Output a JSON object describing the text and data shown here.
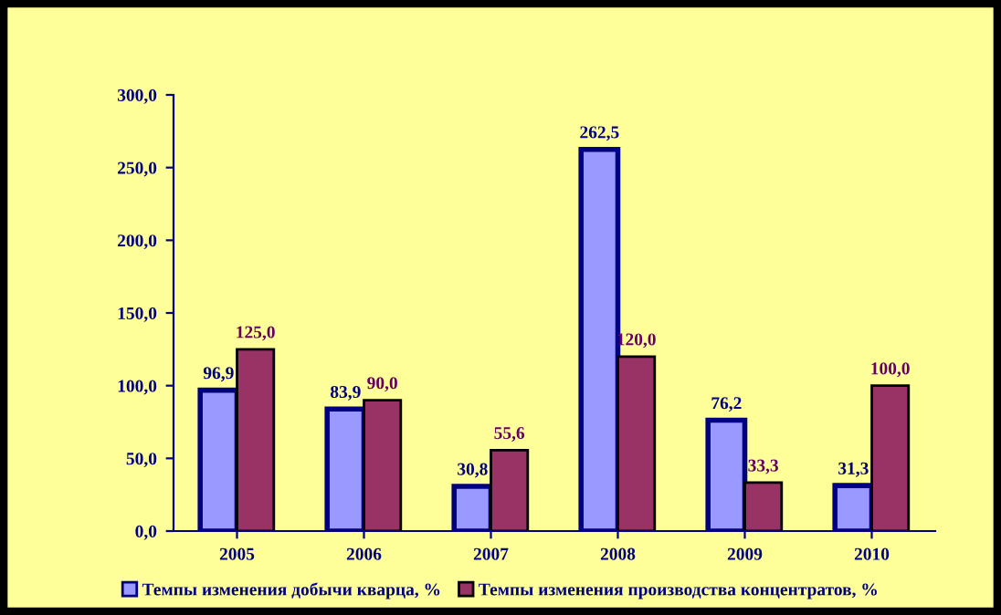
{
  "chart_data": {
    "type": "bar",
    "categories": [
      "2005",
      "2006",
      "2007",
      "2008",
      "2009",
      "2010"
    ],
    "series": [
      {
        "name": "Темпы изменения добычи кварца, %",
        "color": "#9999ff",
        "values": [
          96.9,
          83.9,
          30.8,
          262.5,
          76.2,
          31.3
        ],
        "value_labels": [
          "96,9",
          "83,9",
          "30,8",
          "262,5",
          "76,2",
          "31,3"
        ]
      },
      {
        "name": "Темпы изменения производства концентратов, %",
        "color": "#993366",
        "values": [
          125.0,
          90.0,
          55.6,
          120.0,
          33.3,
          100.0
        ],
        "value_labels": [
          "125,0",
          "90,0",
          "55,6",
          "120,0",
          "33,3",
          "100,0"
        ]
      }
    ],
    "ylim": [
      0,
      300
    ],
    "yticks": [
      {
        "value": 0,
        "label": "0,0"
      },
      {
        "value": 50,
        "label": "50,0"
      },
      {
        "value": 100,
        "label": "100,0"
      },
      {
        "value": 150,
        "label": "150,0"
      },
      {
        "value": 200,
        "label": "200,0"
      },
      {
        "value": 250,
        "label": "250,0"
      },
      {
        "value": 300,
        "label": "300,0"
      }
    ],
    "grid": false,
    "legend": "bottom"
  }
}
